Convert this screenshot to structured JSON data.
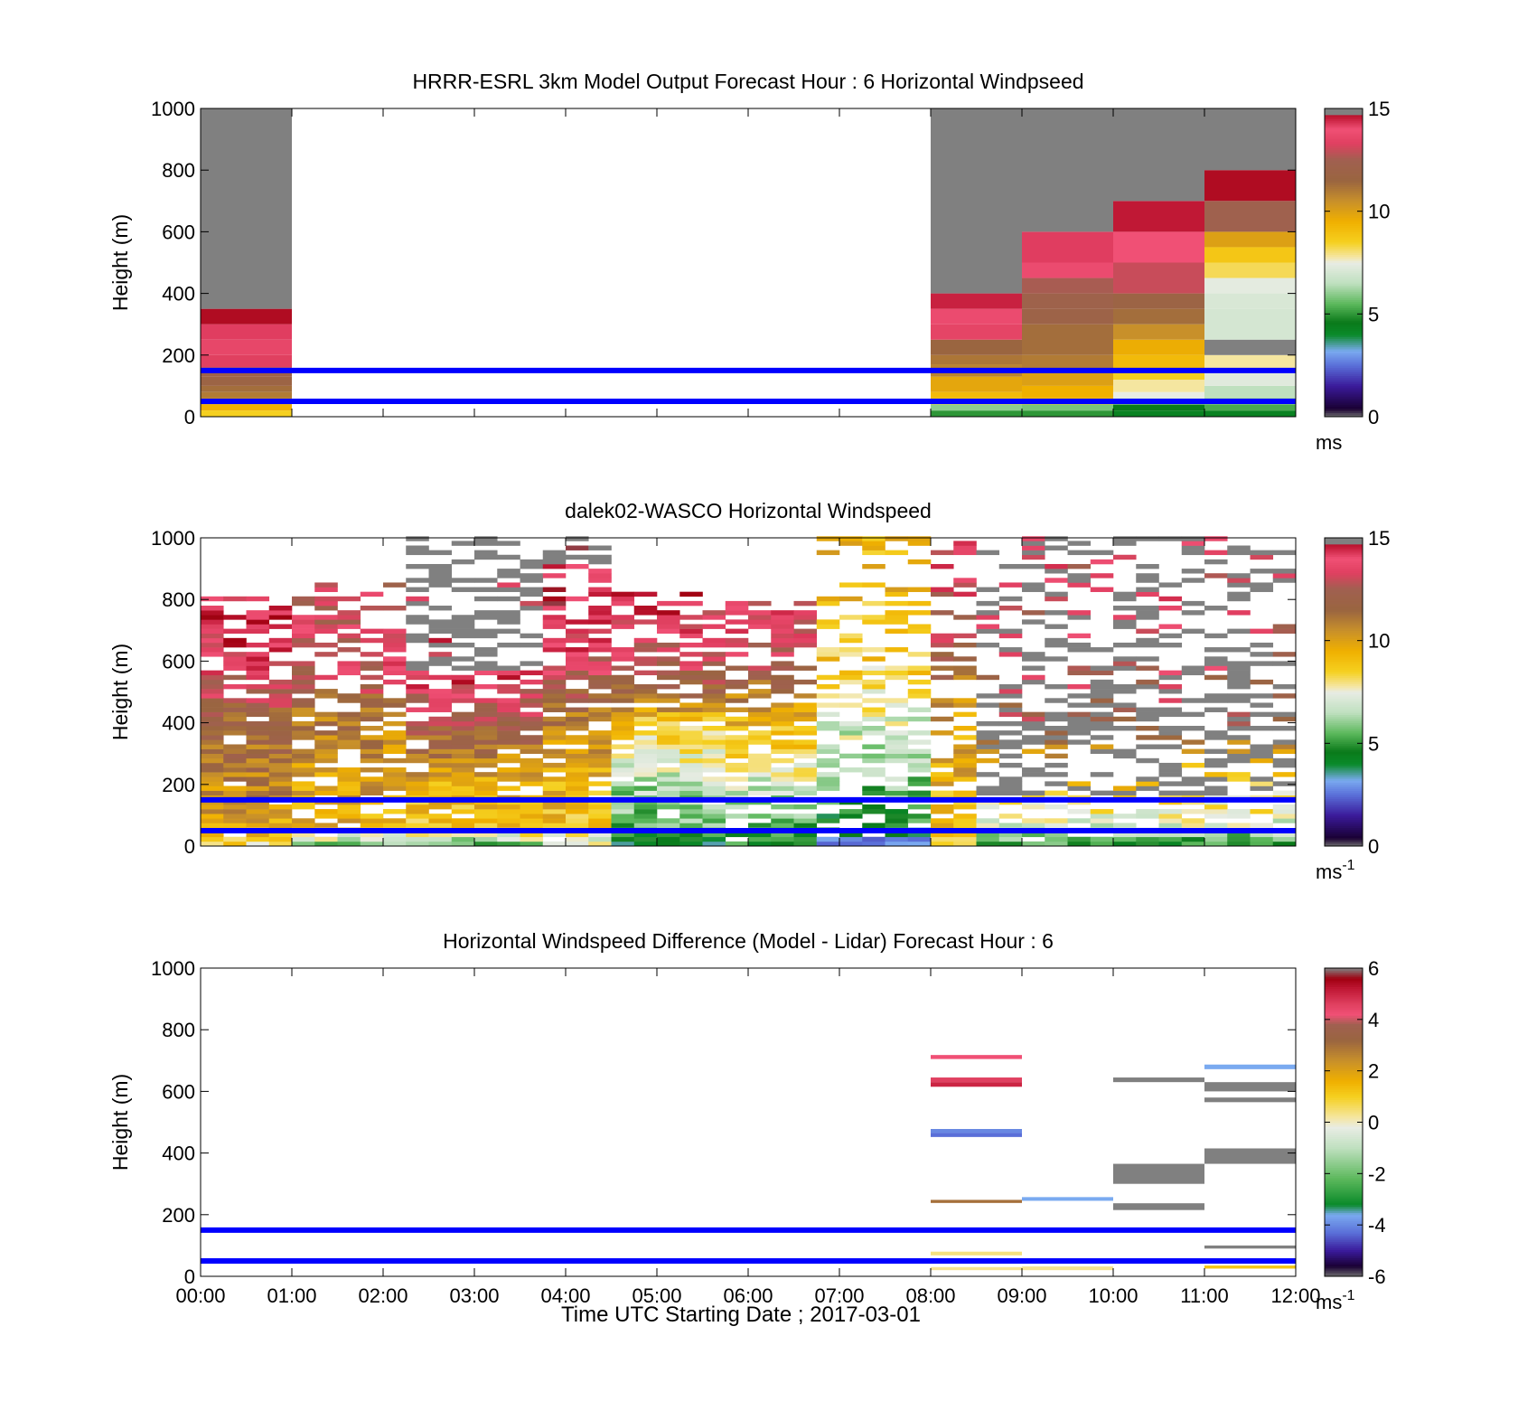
{
  "figure": {
    "xlabel": "Time UTC  Starting Date ; 2017-03-01",
    "ylabel": "Height (m)",
    "x_ticks": [
      "00:00",
      "01:00",
      "02:00",
      "03:00",
      "04:00",
      "05:00",
      "06:00",
      "07:00",
      "08:00",
      "09:00",
      "10:00",
      "11:00",
      "12:00"
    ],
    "y_ticks": [
      0,
      200,
      400,
      600,
      800,
      1000
    ],
    "reference_lines_m": [
      50,
      150
    ],
    "reference_line_color": "#0000ff"
  },
  "chart_data": [
    {
      "type": "heatmap",
      "title": "HRRR-ESRL 3km Model Output   Forecast Hour : 6 Horizontal Windpseed",
      "ylabel": "Height (m)",
      "xlim_hours": [
        0,
        12
      ],
      "ylim": [
        0,
        1000
      ],
      "colorbar": {
        "min": 0,
        "max": 15,
        "ticks": [
          0,
          5,
          10,
          15
        ],
        "unit_label": "ms",
        "unit_sup": ""
      },
      "columns": [
        {
          "x0": 0,
          "x1": 1,
          "top_m": 1000,
          "cells": [
            [
              0,
              20,
              8.5
            ],
            [
              20,
              40,
              9.5
            ],
            [
              40,
              60,
              10.5
            ],
            [
              60,
              80,
              11
            ],
            [
              80,
              100,
              11.3
            ],
            [
              100,
              130,
              11.8
            ],
            [
              130,
              160,
              12.1
            ],
            [
              160,
              200,
              13.3
            ],
            [
              200,
              250,
              13.6
            ],
            [
              250,
              300,
              14.2
            ],
            [
              300,
              350,
              14.8
            ]
          ]
        },
        {
          "x0": 8,
          "x1": 9,
          "top_m": 1000,
          "cells": [
            [
              0,
              20,
              5
            ],
            [
              20,
              40,
              6
            ],
            [
              40,
              60,
              8.8
            ],
            [
              60,
              80,
              9.2
            ],
            [
              80,
              130,
              9.8
            ],
            [
              130,
              170,
              10.8
            ],
            [
              170,
              200,
              11.1
            ],
            [
              200,
              250,
              11.5
            ],
            [
              250,
              300,
              13.5
            ],
            [
              300,
              350,
              13.8
            ],
            [
              350,
              400,
              14.5
            ]
          ]
        },
        {
          "x0": 9,
          "x1": 10,
          "top_m": 1000,
          "cells": [
            [
              0,
              20,
              5
            ],
            [
              20,
              40,
              5.8
            ],
            [
              40,
              60,
              9.2
            ],
            [
              60,
              100,
              9.5
            ],
            [
              100,
              150,
              10
            ],
            [
              150,
              200,
              11
            ],
            [
              200,
              300,
              11.3
            ],
            [
              300,
              350,
              12
            ],
            [
              350,
              400,
              12.2
            ],
            [
              400,
              450,
              12.6
            ],
            [
              450,
              500,
              13.8
            ],
            [
              500,
              600,
              14.2
            ]
          ]
        },
        {
          "x0": 10,
          "x1": 11,
          "top_m": 1000,
          "cells": [
            [
              0,
              20,
              4.3
            ],
            [
              20,
              40,
              4.6
            ],
            [
              40,
              60,
              6.8
            ],
            [
              60,
              80,
              7.5
            ],
            [
              80,
              120,
              7.8
            ],
            [
              120,
              150,
              8.5
            ],
            [
              150,
              200,
              9.2
            ],
            [
              200,
              250,
              9.6
            ],
            [
              250,
              300,
              10.5
            ],
            [
              300,
              350,
              11.3
            ],
            [
              350,
              400,
              11.8
            ],
            [
              400,
              500,
              13
            ],
            [
              500,
              600,
              14
            ],
            [
              600,
              700,
              14.6
            ]
          ]
        },
        {
          "x0": 11,
          "x1": 12,
          "top_m": 1000,
          "cells": [
            [
              0,
              20,
              4.3
            ],
            [
              20,
              40,
              5.3
            ],
            [
              40,
              60,
              6
            ],
            [
              60,
              100,
              6.5
            ],
            [
              100,
              150,
              7.3
            ],
            [
              150,
              200,
              7.8
            ],
            [
              200,
              250,
              16
            ],
            [
              250,
              350,
              7
            ],
            [
              350,
              400,
              7.1
            ],
            [
              400,
              450,
              7.4
            ],
            [
              450,
              500,
              8.2
            ],
            [
              500,
              550,
              8.8
            ],
            [
              550,
              600,
              10
            ],
            [
              600,
              700,
              12.4
            ],
            [
              700,
              800,
              14.8
            ]
          ]
        }
      ]
    },
    {
      "type": "heatmap",
      "title": "dalek02-WASCO  Horizontal Windspeed",
      "ylabel": "Height (m)",
      "xlim_hours": [
        0,
        12
      ],
      "ylim": [
        0,
        1000
      ],
      "colorbar": {
        "min": 0,
        "max": 15,
        "ticks": [
          0,
          5,
          10,
          15
        ],
        "unit_label": "ms",
        "unit_sup": "-1"
      },
      "generator": {
        "column_width_hours": 0.25,
        "bin_height_m": 15,
        "seed": 17,
        "regimes": [
          {
            "from": 0.0,
            "to": 1.0,
            "profile": [
              [
                0,
                8.5
              ],
              [
                60,
                9.8
              ],
              [
                200,
                10.8
              ],
              [
                400,
                11.8
              ],
              [
                600,
                13.8
              ],
              [
                800,
                14
              ]
            ],
            "top": 800,
            "fill": 0.92,
            "gray_above": 9999
          },
          {
            "from": 1.0,
            "to": 2.2,
            "profile": [
              [
                0,
                6
              ],
              [
                60,
                9.5
              ],
              [
                200,
                10
              ],
              [
                400,
                11
              ],
              [
                600,
                13.5
              ],
              [
                800,
                13
              ]
            ],
            "top": 850,
            "fill": 0.75,
            "gray_above": 9999
          },
          {
            "from": 2.2,
            "to": 3.6,
            "profile": [
              [
                0,
                6
              ],
              [
                60,
                9
              ],
              [
                200,
                9.6
              ],
              [
                400,
                12.5
              ],
              [
                550,
                14
              ]
            ],
            "top": 1000,
            "fill": 0.85,
            "gray_above": 560
          },
          {
            "from": 3.6,
            "to": 4.3,
            "profile": [
              [
                0,
                7
              ],
              [
                60,
                9
              ],
              [
                200,
                9.5
              ],
              [
                400,
                11
              ],
              [
                600,
                13.5
              ],
              [
                800,
                14.5
              ]
            ],
            "top": 1000,
            "fill": 0.9,
            "gray_above": 900
          },
          {
            "from": 4.3,
            "to": 5.6,
            "profile": [
              [
                0,
                4.5
              ],
              [
                60,
                5.5
              ],
              [
                200,
                6.5
              ],
              [
                400,
                9
              ],
              [
                500,
                12
              ],
              [
                650,
                13.5
              ],
              [
                800,
                14
              ]
            ],
            "top": 820,
            "fill": 0.88,
            "gray_above": 9999
          },
          {
            "from": 5.6,
            "to": 6.7,
            "profile": [
              [
                0,
                4.5
              ],
              [
                60,
                5.5
              ],
              [
                200,
                7
              ],
              [
                400,
                9.5
              ],
              [
                600,
                13
              ],
              [
                750,
                13.8
              ]
            ],
            "top": 780,
            "fill": 0.7,
            "gray_above": 9999
          },
          {
            "from": 6.7,
            "to": 7.8,
            "profile": [
              [
                0,
                2.5
              ],
              [
                60,
                4.5
              ],
              [
                200,
                6
              ],
              [
                400,
                7.2
              ],
              [
                600,
                8.8
              ],
              [
                800,
                9.2
              ]
            ],
            "top": 1000,
            "fill": 0.55,
            "gray_above": 9999
          },
          {
            "from": 7.8,
            "to": 8.4,
            "profile": [
              [
                0,
                8
              ],
              [
                60,
                9
              ],
              [
                200,
                9.5
              ],
              [
                400,
                10
              ],
              [
                600,
                12
              ],
              [
                800,
                13.5
              ]
            ],
            "top": 1000,
            "fill": 0.5,
            "gray_above": 9999
          },
          {
            "from": 8.4,
            "to": 12.0,
            "profile": [
              [
                0,
                5
              ],
              [
                60,
                7
              ],
              [
                200,
                9
              ],
              [
                400,
                12
              ],
              [
                600,
                13
              ],
              [
                800,
                13.5
              ]
            ],
            "top": 1000,
            "fill": 0.55,
            "gray_above": 150,
            "gray_share": 0.7
          }
        ]
      }
    },
    {
      "type": "heatmap",
      "title": "Horizontal Windspeed Difference (Model - Lidar) Forecast Hour : 6",
      "ylabel": "Height (m)",
      "xlim_hours": [
        0,
        12
      ],
      "ylim": [
        0,
        1000
      ],
      "colorbar": {
        "min": -6,
        "max": 6,
        "ticks": [
          -6,
          -4,
          -2,
          0,
          2,
          4,
          6
        ],
        "unit_label": "ms",
        "unit_sup": "-1"
      },
      "segments": [
        {
          "x0": 8,
          "x1": 9,
          "y0": 705,
          "y1": 718,
          "v": 4.2
        },
        {
          "x0": 8,
          "x1": 9,
          "y0": 630,
          "y1": 645,
          "v": 4.6
        },
        {
          "x0": 8,
          "x1": 9,
          "y0": 615,
          "y1": 630,
          "v": 5
        },
        {
          "x0": 8,
          "x1": 9,
          "y0": 465,
          "y1": 478,
          "v": -4
        },
        {
          "x0": 8,
          "x1": 9,
          "y0": 452,
          "y1": 465,
          "v": -4.3
        },
        {
          "x0": 8,
          "x1": 9,
          "y0": 238,
          "y1": 248,
          "v": 3
        },
        {
          "x0": 8,
          "x1": 9,
          "y0": 68,
          "y1": 80,
          "v": 0.4
        },
        {
          "x0": 8,
          "x1": 9,
          "y0": 42,
          "y1": 56,
          "v": 0.4
        },
        {
          "x0": 8,
          "x1": 9,
          "y0": 20,
          "y1": 30,
          "v": 0.3
        },
        {
          "x0": 9,
          "x1": 10,
          "y0": 245,
          "y1": 257,
          "v": -3.6
        },
        {
          "x0": 9,
          "x1": 10,
          "y0": 42,
          "y1": 56,
          "v": 0.4
        },
        {
          "x0": 9,
          "x1": 10,
          "y0": 20,
          "y1": 32,
          "v": 0.3
        },
        {
          "x0": 10,
          "x1": 11,
          "y0": 630,
          "y1": 645,
          "v": 6
        },
        {
          "x0": 10,
          "x1": 11,
          "y0": 300,
          "y1": 365,
          "v": 6
        },
        {
          "x0": 10,
          "x1": 11,
          "y0": 215,
          "y1": 237,
          "v": 6
        },
        {
          "x0": 10,
          "x1": 11,
          "y0": 42,
          "y1": 56,
          "v": 0.4
        },
        {
          "x0": 11,
          "x1": 12,
          "y0": 672,
          "y1": 687,
          "v": -3.6
        },
        {
          "x0": 11,
          "x1": 12,
          "y0": 600,
          "y1": 630,
          "v": 6
        },
        {
          "x0": 11,
          "x1": 12,
          "y0": 565,
          "y1": 580,
          "v": 6
        },
        {
          "x0": 11,
          "x1": 12,
          "y0": 365,
          "y1": 415,
          "v": 6
        },
        {
          "x0": 11,
          "x1": 12,
          "y0": 90,
          "y1": 100,
          "v": 6
        },
        {
          "x0": 11,
          "x1": 12,
          "y0": 25,
          "y1": 35,
          "v": 1.2
        }
      ]
    }
  ],
  "colormaps": {
    "speed": [
      [
        0,
        "#6e6e6e"
      ],
      [
        0.4,
        "#1a0033"
      ],
      [
        1.5,
        "#3a1a9a"
      ],
      [
        2.5,
        "#5a6fd8"
      ],
      [
        3.2,
        "#7aaaf0"
      ],
      [
        4.0,
        "#0a8a2a"
      ],
      [
        4.6,
        "#0a7a1a"
      ],
      [
        5.5,
        "#5cb85c"
      ],
      [
        6.5,
        "#bfe0bf"
      ],
      [
        7.5,
        "#e8ece4"
      ],
      [
        7.8,
        "#f5e6a0"
      ],
      [
        8.5,
        "#f5d020"
      ],
      [
        9.5,
        "#f0b000"
      ],
      [
        10.5,
        "#c8902a"
      ],
      [
        11.5,
        "#9a6540"
      ],
      [
        12.5,
        "#a06050"
      ],
      [
        13.3,
        "#e04060"
      ],
      [
        14.0,
        "#f05075"
      ],
      [
        14.6,
        "#c01835"
      ],
      [
        15,
        "#a00010"
      ],
      [
        16,
        "#808080"
      ]
    ],
    "diff": [
      [
        -6,
        "#6e6e6e"
      ],
      [
        -5.6,
        "#1a0033"
      ],
      [
        -5,
        "#3a1a9a"
      ],
      [
        -4.3,
        "#5a6fd8"
      ],
      [
        -3.6,
        "#7aaaf0"
      ],
      [
        -3.2,
        "#0a8a2a"
      ],
      [
        -2.2,
        "#5cb85c"
      ],
      [
        -1,
        "#bfe0bf"
      ],
      [
        -0.2,
        "#e8ece4"
      ],
      [
        0.2,
        "#f5e6a0"
      ],
      [
        1,
        "#f5d020"
      ],
      [
        1.6,
        "#f0b000"
      ],
      [
        2.4,
        "#c8902a"
      ],
      [
        3.2,
        "#9a6540"
      ],
      [
        3.8,
        "#a06050"
      ],
      [
        4.2,
        "#f05075"
      ],
      [
        4.6,
        "#e04060"
      ],
      [
        5.2,
        "#c01835"
      ],
      [
        5.6,
        "#a00010"
      ],
      [
        6,
        "#808080"
      ]
    ]
  }
}
